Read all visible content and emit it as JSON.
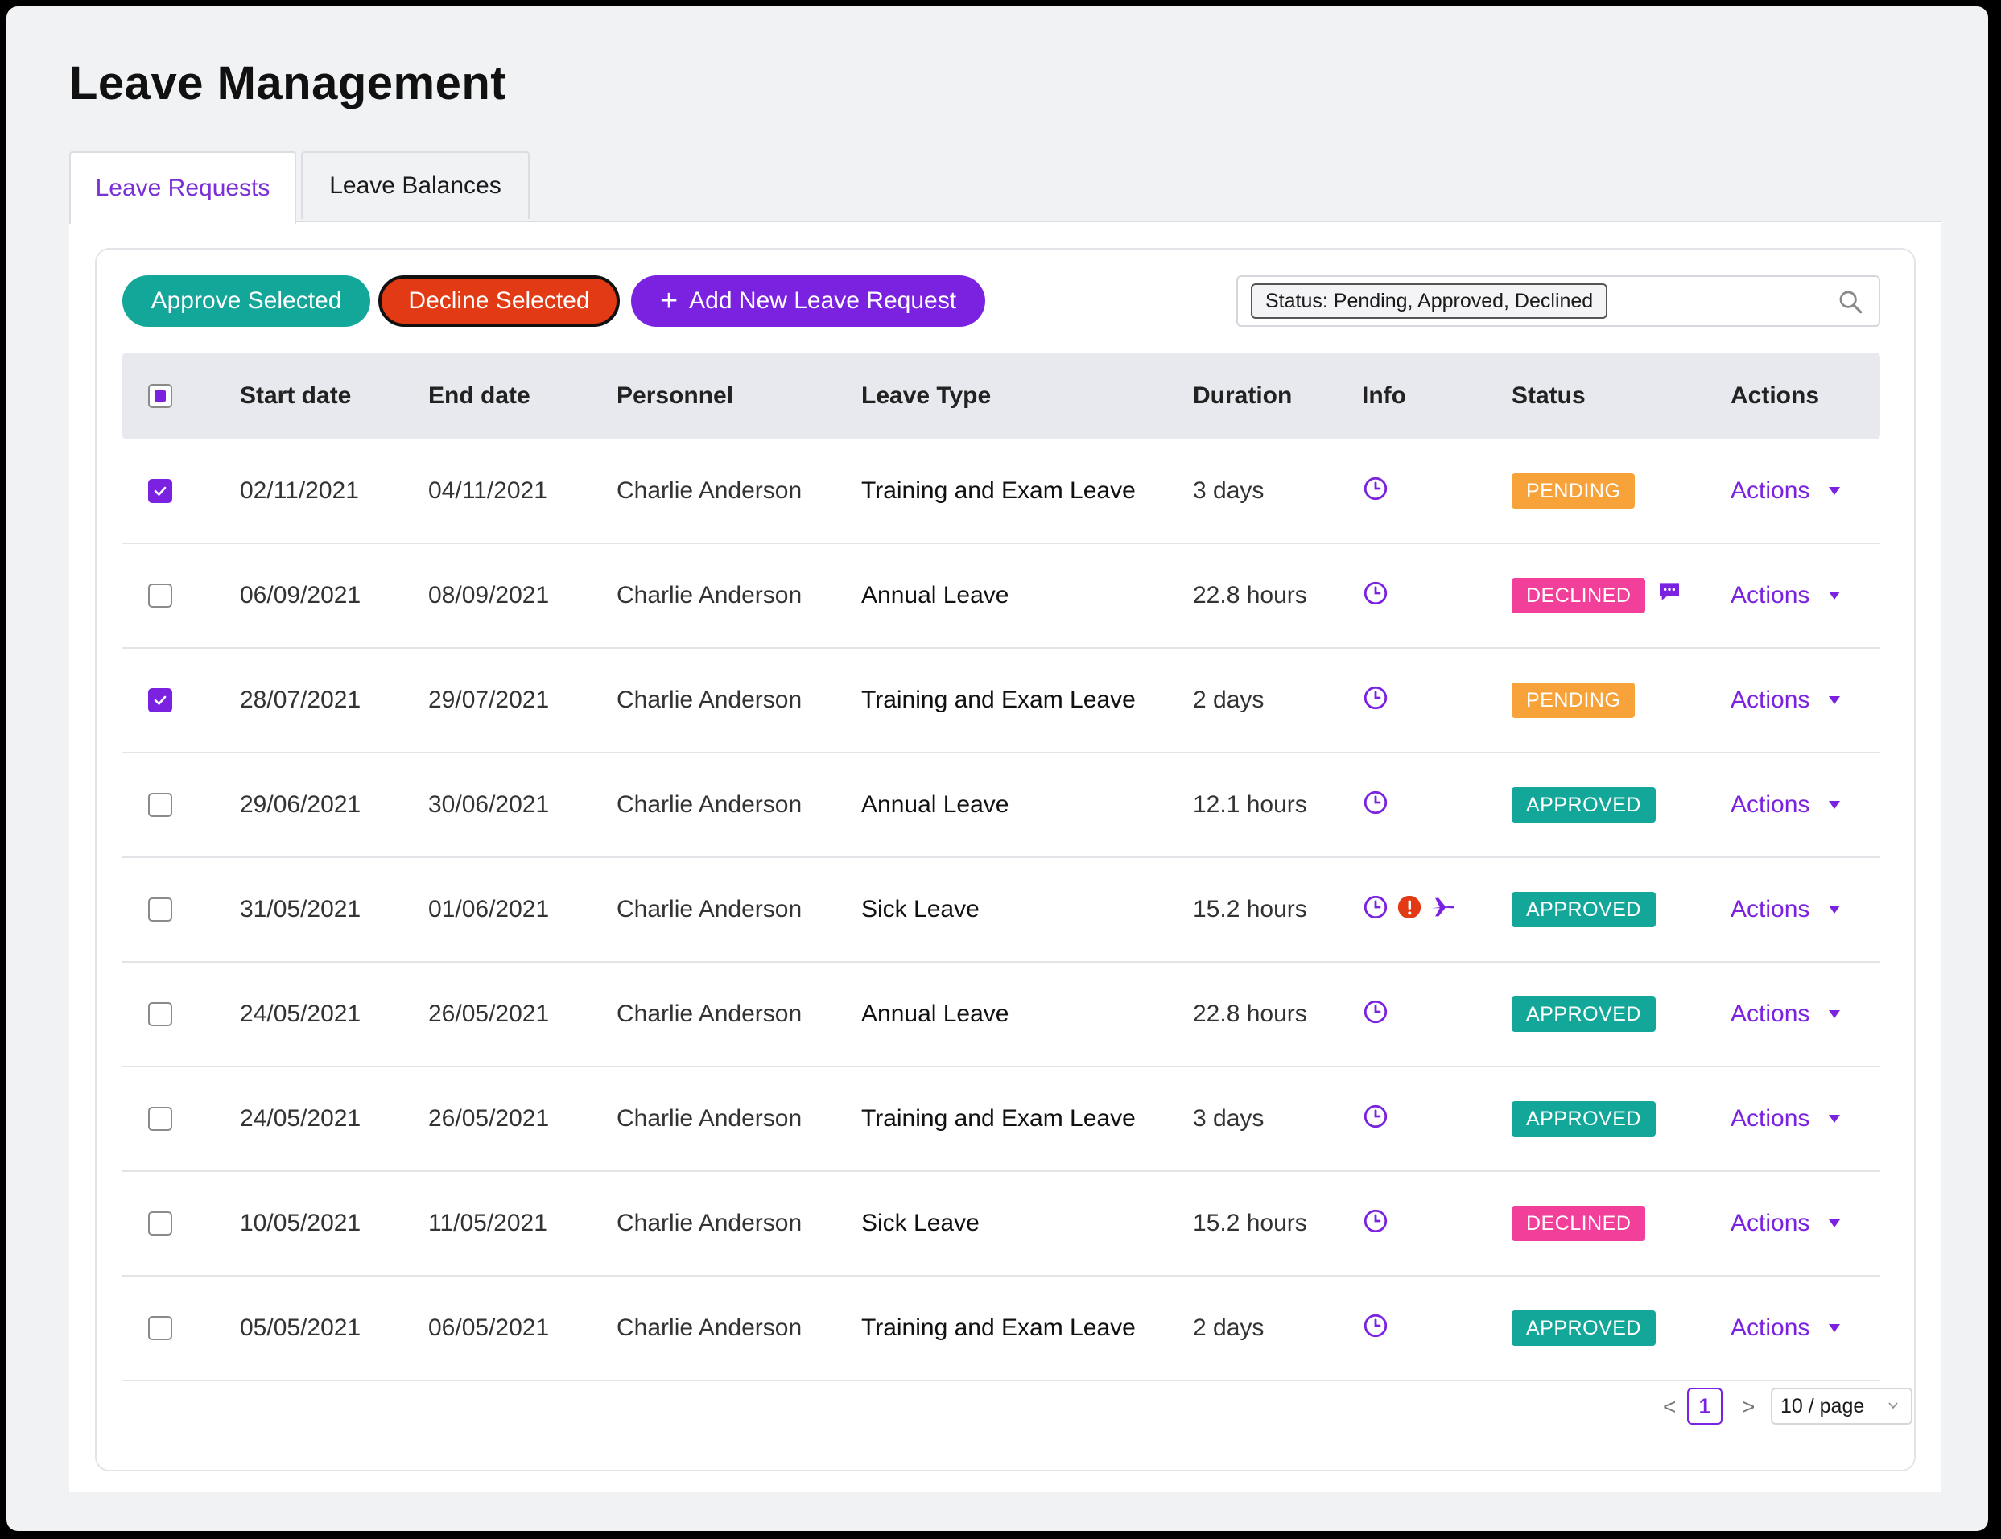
{
  "page": {
    "title": "Leave Management"
  },
  "tabs": [
    {
      "label": "Leave Requests",
      "active": true
    },
    {
      "label": "Leave Balances",
      "active": false
    }
  ],
  "toolbar": {
    "approve_label": "Approve Selected",
    "decline_label": "Decline Selected",
    "add_label": "Add New Leave Request"
  },
  "search": {
    "filter_tag": "Status: Pending, Approved, Declined",
    "icon": "search-icon"
  },
  "table": {
    "columns": [
      "Start date",
      "End date",
      "Personnel",
      "Leave Type",
      "Duration",
      "Info",
      "Status",
      "Actions"
    ],
    "header_checkbox": "partial",
    "rows": [
      {
        "checked": true,
        "start": "02/11/2021",
        "end": "04/11/2021",
        "personnel": "Charlie Anderson",
        "type": "Training and Exam Leave",
        "duration": "3 days",
        "info": [
          "clock-icon"
        ],
        "status": "PENDING",
        "comment": false,
        "actions": "Actions"
      },
      {
        "checked": false,
        "start": "06/09/2021",
        "end": "08/09/2021",
        "personnel": "Charlie Anderson",
        "type": "Annual Leave",
        "duration": "22.8 hours",
        "info": [
          "clock-icon"
        ],
        "status": "DECLINED",
        "comment": true,
        "actions": "Actions"
      },
      {
        "checked": true,
        "start": "28/07/2021",
        "end": "29/07/2021",
        "personnel": "Charlie Anderson",
        "type": "Training and Exam Leave",
        "duration": "2 days",
        "info": [
          "clock-icon"
        ],
        "status": "PENDING",
        "comment": false,
        "actions": "Actions"
      },
      {
        "checked": false,
        "start": "29/06/2021",
        "end": "30/06/2021",
        "personnel": "Charlie Anderson",
        "type": "Annual Leave",
        "duration": "12.1 hours",
        "info": [
          "clock-icon"
        ],
        "status": "APPROVED",
        "comment": false,
        "actions": "Actions"
      },
      {
        "checked": false,
        "start": "31/05/2021",
        "end": "01/06/2021",
        "personnel": "Charlie Anderson",
        "type": "Sick Leave",
        "duration": "15.2 hours",
        "info": [
          "clock-icon",
          "alert-icon",
          "plane-icon"
        ],
        "status": "APPROVED",
        "comment": false,
        "actions": "Actions"
      },
      {
        "checked": false,
        "start": "24/05/2021",
        "end": "26/05/2021",
        "personnel": "Charlie Anderson",
        "type": "Annual Leave",
        "duration": "22.8 hours",
        "info": [
          "clock-icon"
        ],
        "status": "APPROVED",
        "comment": false,
        "actions": "Actions"
      },
      {
        "checked": false,
        "start": "24/05/2021",
        "end": "26/05/2021",
        "personnel": "Charlie Anderson",
        "type": "Training and Exam Leave",
        "duration": "3 days",
        "info": [
          "clock-icon"
        ],
        "status": "APPROVED",
        "comment": false,
        "actions": "Actions"
      },
      {
        "checked": false,
        "start": "10/05/2021",
        "end": "11/05/2021",
        "personnel": "Charlie Anderson",
        "type": "Sick Leave",
        "duration": "15.2 hours",
        "info": [
          "clock-icon"
        ],
        "status": "DECLINED",
        "comment": false,
        "actions": "Actions"
      },
      {
        "checked": false,
        "start": "05/05/2021",
        "end": "06/05/2021",
        "personnel": "Charlie Anderson",
        "type": "Training and Exam Leave",
        "duration": "2 days",
        "info": [
          "clock-icon"
        ],
        "status": "APPROVED",
        "comment": false,
        "actions": "Actions"
      }
    ]
  },
  "pagination": {
    "prev": "<",
    "current": "1",
    "next": ">",
    "page_size": "10 / page"
  },
  "colors": {
    "accent": "#7b22e0",
    "approve": "#13a79a",
    "decline": "#e23a14",
    "pending": "#f8a33a",
    "declined_badge": "#f23f9a"
  }
}
